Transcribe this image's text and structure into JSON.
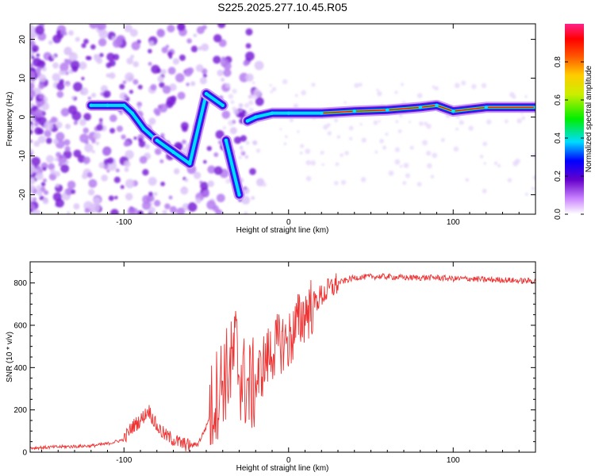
{
  "page": {
    "title": "S225.2025.277.10.45.R05"
  },
  "chart_data": [
    {
      "type": "heatmap",
      "title": "S225.2025.277.10.45.R05",
      "xlabel": "Height of straight line (km)",
      "ylabel": "Frequency (Hz)",
      "xlim": [
        -157,
        150
      ],
      "ylim": [
        -25,
        24
      ],
      "x_ticks": [
        -100,
        0,
        100
      ],
      "y_ticks": [
        -20,
        -10,
        0,
        10,
        20
      ],
      "colorbar": {
        "label": "Normalized spectral amplitude",
        "range": [
          0,
          1
        ],
        "ticks": [
          "0.0",
          "0.2",
          "0.4",
          "0.6",
          "0.8"
        ],
        "colormap": "rainbow (white-violet-blue-cyan-green-yellow-orange-red-pink)"
      },
      "ridge": [
        {
          "x": -120,
          "y": 3
        },
        {
          "x": -110,
          "y": 3
        },
        {
          "x": -100,
          "y": 3
        },
        {
          "x": -95,
          "y": 1
        },
        {
          "x": -88,
          "y": -3
        },
        {
          "x": -80,
          "y": -6
        },
        {
          "x": -70,
          "y": -9
        },
        {
          "x": -60,
          "y": -12
        },
        {
          "x": -50,
          "y": 6
        },
        {
          "x": -40,
          "y": 3
        },
        {
          "x": -38,
          "y": -6
        },
        {
          "x": -30,
          "y": -20
        },
        {
          "x": -25,
          "y": -1
        },
        {
          "x": -20,
          "y": 0
        },
        {
          "x": -10,
          "y": 1
        },
        {
          "x": 0,
          "y": 1
        },
        {
          "x": 20,
          "y": 1
        },
        {
          "x": 40,
          "y": 1.5
        },
        {
          "x": 60,
          "y": 1.8
        },
        {
          "x": 80,
          "y": 2.5
        },
        {
          "x": 90,
          "y": 3
        },
        {
          "x": 100,
          "y": 1.5
        },
        {
          "x": 120,
          "y": 2.5
        },
        {
          "x": 150,
          "y": 2.5
        }
      ]
    },
    {
      "type": "line",
      "xlabel": "Height of straight line (km)",
      "ylabel": "SNR (10 * v/v)",
      "xlim": [
        -157,
        150
      ],
      "ylim": [
        0,
        900
      ],
      "x_ticks": [
        -100,
        0,
        100
      ],
      "y_ticks": [
        0,
        200,
        400,
        600,
        800
      ],
      "color": "#ee3333",
      "series": [
        {
          "points": [
            {
              "x": -157,
              "y": 20
            },
            {
              "x": -140,
              "y": 25
            },
            {
              "x": -120,
              "y": 30
            },
            {
              "x": -110,
              "y": 40
            },
            {
              "x": -100,
              "y": 60
            },
            {
              "x": -95,
              "y": 120
            },
            {
              "x": -90,
              "y": 150
            },
            {
              "x": -85,
              "y": 200
            },
            {
              "x": -80,
              "y": 120
            },
            {
              "x": -75,
              "y": 80
            },
            {
              "x": -70,
              "y": 60
            },
            {
              "x": -65,
              "y": 40
            },
            {
              "x": -60,
              "y": 30
            },
            {
              "x": -55,
              "y": 40
            },
            {
              "x": -50,
              "y": 120
            },
            {
              "x": -45,
              "y": 250
            },
            {
              "x": -40,
              "y": 350
            },
            {
              "x": -35,
              "y": 400
            },
            {
              "x": -32,
              "y": 500
            },
            {
              "x": -30,
              "y": 380
            },
            {
              "x": -25,
              "y": 300
            },
            {
              "x": -20,
              "y": 320
            },
            {
              "x": -15,
              "y": 420
            },
            {
              "x": -10,
              "y": 480
            },
            {
              "x": -5,
              "y": 520
            },
            {
              "x": 0,
              "y": 520
            },
            {
              "x": 5,
              "y": 600
            },
            {
              "x": 10,
              "y": 660
            },
            {
              "x": 20,
              "y": 740
            },
            {
              "x": 30,
              "y": 800
            },
            {
              "x": 40,
              "y": 825
            },
            {
              "x": 50,
              "y": 830
            },
            {
              "x": 60,
              "y": 830
            },
            {
              "x": 70,
              "y": 825
            },
            {
              "x": 80,
              "y": 825
            },
            {
              "x": 90,
              "y": 825
            },
            {
              "x": 100,
              "y": 820
            },
            {
              "x": 110,
              "y": 820
            },
            {
              "x": 120,
              "y": 815
            },
            {
              "x": 130,
              "y": 815
            },
            {
              "x": 140,
              "y": 810
            },
            {
              "x": 150,
              "y": 810
            }
          ]
        }
      ]
    }
  ]
}
